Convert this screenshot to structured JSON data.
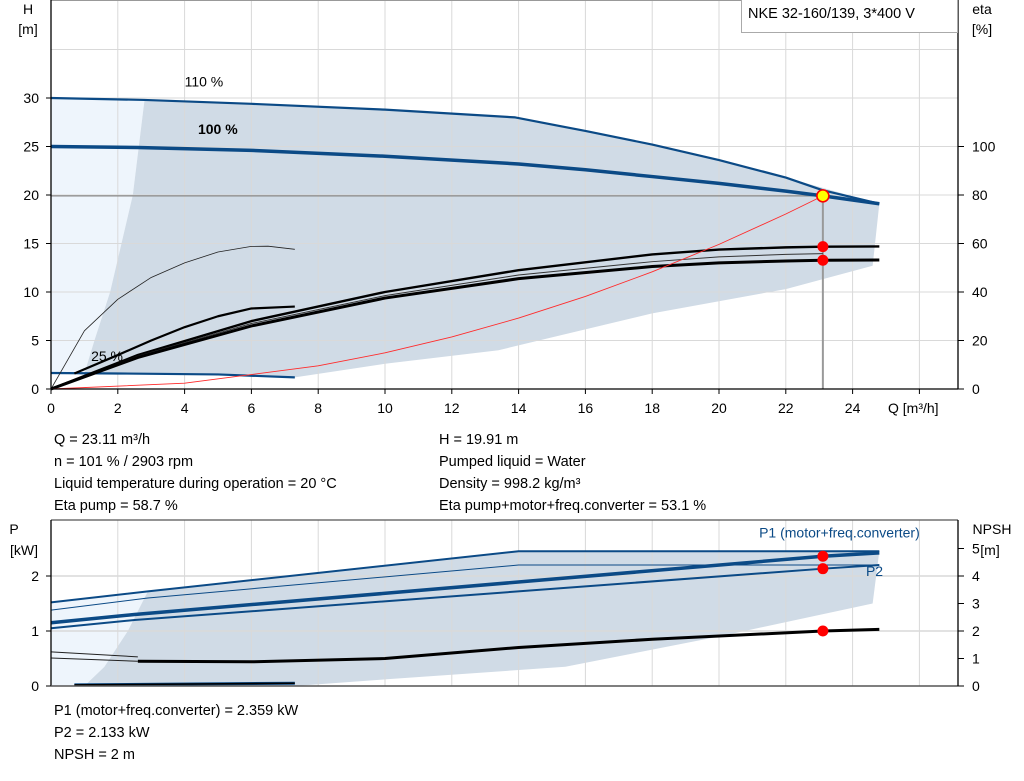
{
  "legend_box": "NKE 32-160/139, 3*400 V",
  "colors": {
    "curve_blue": "#0b4a86",
    "range_fill": "#d0dbe6",
    "light_fill": "#eef5fc",
    "system_curve": "#ff2b2b",
    "point_red": "#ff0000",
    "point_yellow": "#ffff00",
    "grid": "#d9d9d9"
  },
  "info_top": {
    "left": [
      "Q = 23.11 m³/h",
      "n = 101 % / 2903 rpm",
      "Liquid temperature during operation = 20 °C",
      "Eta pump = 58.7 %"
    ],
    "right": [
      "H = 19.91 m",
      "Pumped liquid = Water",
      "Density = 998.2 kg/m³",
      "Eta pump+motor+freq.converter = 53.1 %"
    ]
  },
  "info_bottom": [
    "P1 (motor+freq.converter) = 2.359 kW",
    "P2 = 2.133 kW",
    "NPSH = 2 m"
  ],
  "chart_data": [
    {
      "type": "line",
      "xlabel": "Q [m³/h]",
      "ylabel_left": [
        "H",
        "[m]"
      ],
      "ylabel_right": [
        "eta",
        "[%]"
      ],
      "xlim": [
        0,
        27
      ],
      "ylim": [
        0,
        40
      ],
      "ylim_right": [
        0,
        160
      ],
      "xticks": [
        0,
        2,
        4,
        6,
        8,
        10,
        12,
        14,
        16,
        18,
        20,
        22,
        24
      ],
      "yticks": [
        0,
        5,
        10,
        15,
        20,
        25,
        30
      ],
      "yticks_right": [
        0,
        20,
        40,
        60,
        80,
        100
      ],
      "grid": true,
      "curve_labels": [
        {
          "text": "110 %",
          "x": 4,
          "y": 31.2,
          "bold": false
        },
        {
          "text": "100 %",
          "x": 4.4,
          "y": 26.3,
          "bold": true
        },
        {
          "text": "25 %",
          "x": 1.2,
          "y": 2.9,
          "bold": false
        }
      ],
      "series": [
        {
          "name": "110 %",
          "axis": "H",
          "points": [
            [
              0,
              30
            ],
            [
              2.8,
              29.8
            ],
            [
              6,
              29.4
            ],
            [
              10,
              28.8
            ],
            [
              13.9,
              28
            ],
            [
              16,
              26.6
            ],
            [
              18,
              25.2
            ],
            [
              20,
              23.6
            ],
            [
              22,
              21.8
            ],
            [
              23.1,
              20.5
            ],
            [
              24.8,
              19.1
            ]
          ]
        },
        {
          "name": "100 %",
          "axis": "H",
          "points": [
            [
              0,
              25
            ],
            [
              2.6,
              24.9
            ],
            [
              6,
              24.6
            ],
            [
              10,
              24
            ],
            [
              14,
              23.2
            ],
            [
              16,
              22.6
            ],
            [
              18,
              21.9
            ],
            [
              20,
              21.2
            ],
            [
              22,
              20.4
            ],
            [
              23.11,
              19.91
            ],
            [
              24.8,
              19.1
            ]
          ]
        },
        {
          "name": "25 %",
          "axis": "H",
          "points": [
            [
              0,
              1.65
            ],
            [
              2,
              1.6
            ],
            [
              5,
              1.5
            ],
            [
              7.3,
              1.2
            ]
          ]
        },
        {
          "axis": "eta",
          "points": [
            [
              0,
              0
            ],
            [
              1,
              24
            ],
            [
              2,
              37
            ],
            [
              3,
              46
            ],
            [
              4,
              52
            ],
            [
              5,
              56.5
            ],
            [
              6,
              58.8
            ],
            [
              6.5,
              58.9
            ],
            [
              7.3,
              57.6
            ]
          ]
        },
        {
          "axis": "eta",
          "points": [
            [
              0.7,
              6.4
            ],
            [
              2,
              14
            ],
            [
              3,
              20
            ],
            [
              4,
              25.5
            ],
            [
              5,
              30
            ],
            [
              6,
              33.2
            ],
            [
              7.3,
              34
            ]
          ]
        },
        {
          "name": "Eta pump",
          "axis": "eta",
          "points": [
            [
              0,
              0
            ],
            [
              2.6,
              14
            ],
            [
              6,
              28
            ],
            [
              10,
              40
            ],
            [
              14,
              49
            ],
            [
              18,
              55.5
            ],
            [
              20,
              57.5
            ],
            [
              22,
              58.4
            ],
            [
              23.11,
              58.7
            ],
            [
              24.8,
              58.8
            ]
          ]
        },
        {
          "axis": "eta",
          "points": [
            [
              0,
              0
            ],
            [
              2.6,
              13.5
            ],
            [
              6,
              27
            ],
            [
              10,
              38.5
            ],
            [
              14,
              47
            ],
            [
              18,
              52.5
            ],
            [
              20,
              54.5
            ],
            [
              22,
              55.5
            ],
            [
              23.11,
              55.8
            ]
          ]
        },
        {
          "name": "Eta pump+motor+freq.converter",
          "axis": "eta",
          "points": [
            [
              0,
              0
            ],
            [
              2.6,
              13
            ],
            [
              6,
              26
            ],
            [
              10,
              37.5
            ],
            [
              14,
              45.5
            ],
            [
              18,
              50.5
            ],
            [
              20,
              52
            ],
            [
              22,
              52.8
            ],
            [
              23.11,
              53.1
            ],
            [
              24.8,
              53.2
            ]
          ]
        },
        {
          "name": "System curve",
          "axis": "H",
          "points": [
            [
              0,
              0
            ],
            [
              4,
              0.6
            ],
            [
              8,
              2.39
            ],
            [
              10,
              3.73
            ],
            [
              12,
              5.37
            ],
            [
              14,
              7.31
            ],
            [
              16,
              9.54
            ],
            [
              18,
              12.08
            ],
            [
              20,
              14.91
            ],
            [
              22,
              18.04
            ],
            [
              23.11,
              19.91
            ]
          ]
        }
      ],
      "range_upper": [
        [
          2.8,
          29.8
        ],
        [
          6,
          29.4
        ],
        [
          10,
          28.8
        ],
        [
          13.9,
          28
        ],
        [
          16,
          26.6
        ],
        [
          18,
          25.2
        ],
        [
          20,
          23.6
        ],
        [
          22,
          21.8
        ],
        [
          24.8,
          19.1
        ]
      ],
      "range_lower": [
        [
          24.6,
          12.7
        ],
        [
          22,
          10.3
        ],
        [
          18,
          7.8
        ],
        [
          13.4,
          4.0
        ],
        [
          10,
          2.6
        ],
        [
          7.3,
          1.2
        ],
        [
          5,
          1.5
        ],
        [
          2,
          1.6
        ],
        [
          1,
          1.6
        ],
        [
          1.3,
          5
        ],
        [
          1.77,
          10
        ],
        [
          2.45,
          20
        ]
      ],
      "operating_point": {
        "Q": 23.11,
        "H": 19.91,
        "eta_pump": 58.7,
        "eta_total": 53.1
      }
    },
    {
      "type": "line",
      "xlabel": "",
      "ylabel_left": [
        "P",
        "[kW]"
      ],
      "ylabel_right": [
        "NPSH",
        "[m]"
      ],
      "xlim": [
        0,
        27
      ],
      "ylim": [
        0,
        3
      ],
      "ylim_right": [
        0,
        6
      ],
      "yticks": [
        0,
        1,
        2
      ],
      "yticks_right": [
        0,
        1,
        2,
        3,
        4,
        5
      ],
      "grid": true,
      "curve_labels": [
        {
          "text": "P1 (motor+freq.converter)",
          "x": 21.2,
          "y": 2.7
        },
        {
          "text": "P2",
          "x": 24.4,
          "y": 2.0
        }
      ],
      "series": [
        {
          "axis": "P",
          "points": [
            [
              0,
              1.52
            ],
            [
              2.9,
              1.72
            ],
            [
              14,
              2.45
            ],
            [
              24.8,
              2.45
            ]
          ]
        },
        {
          "axis": "P",
          "points": [
            [
              0,
              1.38
            ],
            [
              2.9,
              1.6
            ],
            [
              14,
              2.2
            ],
            [
              24.8,
              2.2
            ]
          ]
        },
        {
          "name": "P1 (motor+freq.converter)",
          "axis": "P",
          "points": [
            [
              0,
              1.15
            ],
            [
              2.5,
              1.3
            ],
            [
              23.11,
              2.359
            ],
            [
              24.8,
              2.42
            ]
          ]
        },
        {
          "name": "P2",
          "axis": "P",
          "points": [
            [
              0,
              1.05
            ],
            [
              2.5,
              1.2
            ],
            [
              23.11,
              2.133
            ],
            [
              24.8,
              2.2
            ]
          ]
        },
        {
          "axis": "NPSH",
          "points": [
            [
              0,
              1.24
            ],
            [
              2.6,
              1.06
            ]
          ]
        },
        {
          "axis": "NPSH",
          "points": [
            [
              0,
              1.02
            ],
            [
              2.6,
              0.9
            ]
          ]
        },
        {
          "name": "NPSH",
          "axis": "NPSH",
          "points": [
            [
              2.6,
              0.9
            ],
            [
              6,
              0.88
            ],
            [
              10,
              1.0
            ],
            [
              14,
              1.4
            ],
            [
              18,
              1.7
            ],
            [
              23.11,
              2.0
            ],
            [
              24.8,
              2.06
            ]
          ]
        },
        {
          "axis": "P",
          "points": [
            [
              0.7,
              0.02
            ],
            [
              7.3,
              0.05
            ]
          ]
        }
      ],
      "range_upper": [
        [
          2.9,
          1.72
        ],
        [
          14,
          2.45
        ],
        [
          24.8,
          2.45
        ]
      ],
      "range_lower": [
        [
          24.6,
          1.5
        ],
        [
          20,
          0.9
        ],
        [
          15.4,
          0.35
        ],
        [
          10,
          0.12
        ],
        [
          7.3,
          0.0
        ],
        [
          1.0,
          0.0
        ],
        [
          1.6,
          0.35
        ],
        [
          2.3,
          1.0
        ]
      ],
      "operating_point": {
        "Q": 23.11,
        "P1": 2.359,
        "P2": 2.133,
        "NPSH": 2
      }
    }
  ]
}
